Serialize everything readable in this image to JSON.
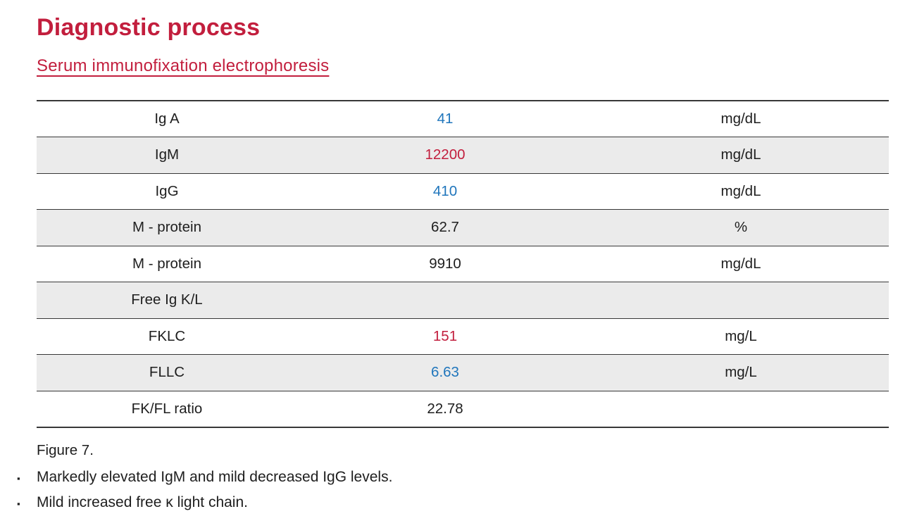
{
  "page": {
    "title": "Diagnostic process",
    "subtitle": "Serum immunofixation electrophoresis"
  },
  "colors": {
    "accent_crimson": "#c21e3d",
    "value_high_red": "#c21e3d",
    "value_low_blue": "#2076bc",
    "value_normal_black": "#1e1e1e",
    "row_alt_background": "#ebebeb",
    "table_border": "#383838"
  },
  "table": {
    "rows": [
      {
        "label": "Ig A",
        "value": "41",
        "unit": "mg/dL",
        "value_color": "#2076bc"
      },
      {
        "label": "IgM",
        "value": "12200",
        "unit": "mg/dL",
        "value_color": "#c21e3d"
      },
      {
        "label": "IgG",
        "value": "410",
        "unit": "mg/dL",
        "value_color": "#2076bc"
      },
      {
        "label": "M - protein",
        "value": "62.7",
        "unit": "%",
        "value_color": "#1e1e1e"
      },
      {
        "label": "M - protein",
        "value": "9910",
        "unit": "mg/dL",
        "value_color": "#1e1e1e"
      },
      {
        "label": "Free Ig K/L",
        "value": "",
        "unit": "",
        "value_color": "#1e1e1e"
      },
      {
        "label": "FKLC",
        "value": "151",
        "unit": "mg/L",
        "value_color": "#c21e3d"
      },
      {
        "label": "FLLC",
        "value": "6.63",
        "unit": "mg/L",
        "value_color": "#2076bc"
      },
      {
        "label": "FK/FL ratio",
        "value": "22.78",
        "unit": "",
        "value_color": "#1e1e1e"
      }
    ]
  },
  "caption": "Figure 7.",
  "bullet_marker": "▪",
  "bullets": [
    "Markedly elevated IgM and mild decreased IgG levels.",
    "Mild increased free κ light chain."
  ]
}
